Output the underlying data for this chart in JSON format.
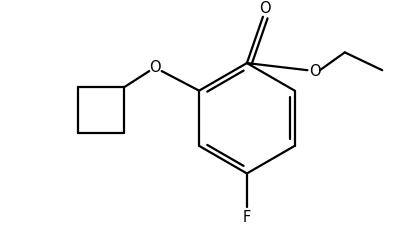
{
  "background_color": "#ffffff",
  "line_color": "#000000",
  "line_width": 1.6,
  "fig_width": 4.11,
  "fig_height": 2.25,
  "dpi": 100,
  "label_O_carbonyl": "O",
  "label_O_ester": "O",
  "label_O_ether": "O",
  "label_F": "F",
  "fontsize": 10.5
}
